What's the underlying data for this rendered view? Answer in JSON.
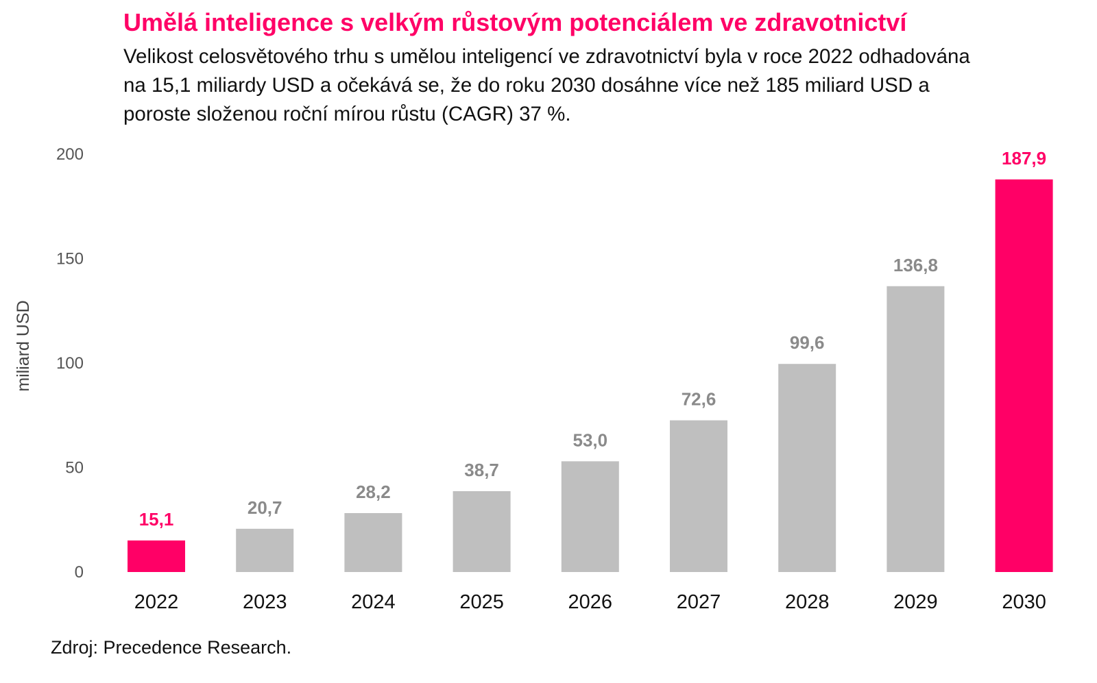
{
  "title": "Umělá inteligence s velkým růstovým potenciálem ve zdravotnictví",
  "subtitle": "Velikost celosvětového trhu s umělou inteligencí ve zdravotnictví byla v roce 2022 odhadována na 15,1 miliardy USD a očekává se, že do roku 2030 dosáhne více než 185 miliard USD a poroste složenou roční mírou růstu (CAGR) 37 %.",
  "source": "Zdroj: Precedence Research.",
  "colors": {
    "highlight": "#ff0066",
    "bar": "#bfbfbf",
    "label_gray": "#8a8a8a"
  },
  "chart_data": {
    "type": "bar",
    "ylabel": "miliard USD",
    "ylim": [
      0,
      200
    ],
    "yticks": [
      "0",
      "50",
      "100",
      "150",
      "200"
    ],
    "categories": [
      "2022",
      "2023",
      "2024",
      "2025",
      "2026",
      "2027",
      "2028",
      "2029",
      "2030"
    ],
    "values": [
      15.1,
      20.7,
      28.2,
      38.7,
      53.0,
      72.6,
      99.6,
      136.8,
      187.9
    ],
    "value_labels": [
      "15,1",
      "20,7",
      "28,2",
      "38,7",
      "53,0",
      "72,6",
      "99,6",
      "136,8",
      "187,9"
    ],
    "highlighted": [
      true,
      false,
      false,
      false,
      false,
      false,
      false,
      false,
      true
    ],
    "grid": false,
    "legend": "none"
  }
}
